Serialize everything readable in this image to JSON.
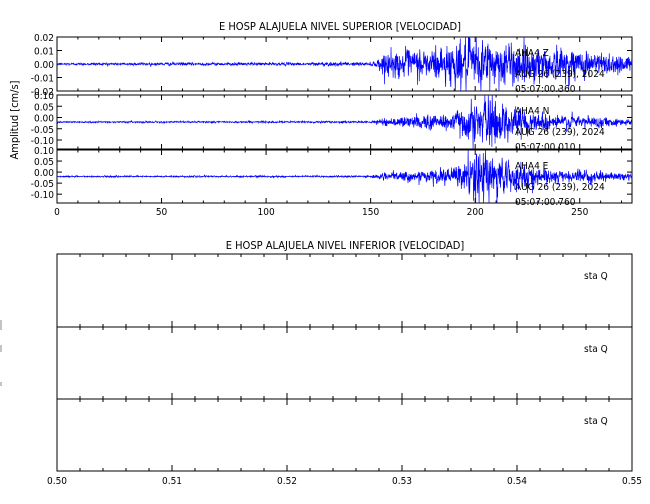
{
  "top_figure": {
    "title": "E HOSP ALAJUELA NIVEL SUPERIOR [VELOCIDAD]",
    "ylabel": "Amplitud [cm/s]",
    "xlim": [
      0,
      275
    ],
    "x_ticks": [
      "0",
      "50",
      "100",
      "150",
      "200",
      "250"
    ],
    "trace_color": "#0000ff",
    "panels": [
      {
        "ylim": [
          -0.02,
          0.02
        ],
        "y_ticks": [
          "0.02",
          "0.01",
          "0.00",
          "-0.01",
          "-0.02"
        ],
        "component": "AHA4 Z",
        "date": "AUG 26 (239), 2024",
        "time": "05:07:00.360"
      },
      {
        "ylim": [
          -0.12,
          0.12
        ],
        "y_ticks": [
          "0.10",
          "0.05",
          "0.00",
          "-0.05",
          "-0.10"
        ],
        "component": "AHA4 N",
        "date": "AUG 26 (239), 2024",
        "time": "05:07:00.010"
      },
      {
        "ylim": [
          -0.12,
          0.12
        ],
        "y_ticks": [
          "0.10",
          "0.05",
          "0.00",
          "-0.05",
          "-0.10"
        ],
        "component": "AHA4 E",
        "date": "AUG 26 (239), 2024",
        "time": "05:07:00.760"
      }
    ]
  },
  "bottom_figure": {
    "title": "E HOSP ALAJUELA NIVEL INFERIOR [VELOCIDAD]",
    "xlim": [
      0.5,
      0.55
    ],
    "x_ticks": [
      "0.50",
      "0.51",
      "0.52",
      "0.53",
      "0.54",
      "0.55"
    ],
    "panels": [
      {
        "label": "sta Q"
      },
      {
        "label": "sta Q"
      },
      {
        "label": "sta Q"
      }
    ]
  },
  "chart_data": [
    {
      "type": "line",
      "title": "E HOSP ALAJUELA NIVEL SUPERIOR [VELOCIDAD]",
      "xlabel": "",
      "ylabel": "Amplitud [cm/s]",
      "xlim": [
        0,
        275
      ],
      "series": [
        {
          "name": "AHA4 Z",
          "ylim": [
            -0.02,
            0.02
          ],
          "envelope_t": [
            0,
            60,
            120,
            130,
            140,
            150,
            153,
            155,
            160,
            170,
            180,
            190,
            195,
            200,
            205,
            210,
            215,
            220,
            230,
            240,
            250,
            260,
            270,
            275
          ],
          "envelope_amp": [
            0.0008,
            0.001,
            0.001,
            0.0015,
            0.001,
            0.0012,
            0.003,
            0.007,
            0.009,
            0.011,
            0.012,
            0.016,
            0.017,
            0.019,
            0.019,
            0.017,
            0.016,
            0.015,
            0.013,
            0.012,
            0.011,
            0.009,
            0.007,
            0.006
          ]
        },
        {
          "name": "AHA4 N",
          "ylim": [
            -0.12,
            0.12
          ],
          "envelope_t": [
            0,
            150,
            155,
            160,
            170,
            180,
            190,
            195,
            200,
            205,
            210,
            212,
            215,
            220,
            230,
            240,
            250,
            260,
            270,
            275
          ],
          "envelope_amp": [
            0.003,
            0.004,
            0.012,
            0.02,
            0.025,
            0.035,
            0.05,
            0.07,
            0.09,
            0.1,
            0.11,
            0.1,
            0.08,
            0.06,
            0.04,
            0.035,
            0.03,
            0.022,
            0.015,
            0.012
          ]
        },
        {
          "name": "AHA4 E",
          "ylim": [
            -0.12,
            0.12
          ],
          "envelope_t": [
            0,
            150,
            155,
            160,
            170,
            180,
            190,
            195,
            200,
            205,
            210,
            215,
            220,
            230,
            240,
            250,
            260,
            270,
            275
          ],
          "envelope_amp": [
            0.003,
            0.004,
            0.012,
            0.018,
            0.022,
            0.03,
            0.04,
            0.07,
            0.11,
            0.12,
            0.1,
            0.08,
            0.06,
            0.04,
            0.03,
            0.025,
            0.02,
            0.015,
            0.012
          ]
        }
      ]
    },
    {
      "type": "line",
      "title": "E HOSP ALAJUELA NIVEL INFERIOR [VELOCIDAD]",
      "xlabel": "",
      "ylabel": "",
      "xlim": [
        0.5,
        0.55
      ],
      "series": [
        {
          "name": "sta Q",
          "values": []
        },
        {
          "name": "sta Q",
          "values": []
        },
        {
          "name": "sta Q",
          "values": []
        }
      ]
    }
  ]
}
